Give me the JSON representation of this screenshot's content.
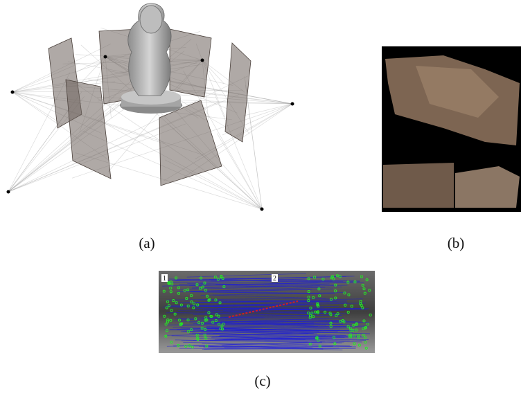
{
  "figure": {
    "panels": [
      {
        "label": "(a)"
      },
      {
        "label": "(b)"
      },
      {
        "label": "(c)",
        "image_tags": [
          "1",
          "2"
        ]
      }
    ]
  }
}
